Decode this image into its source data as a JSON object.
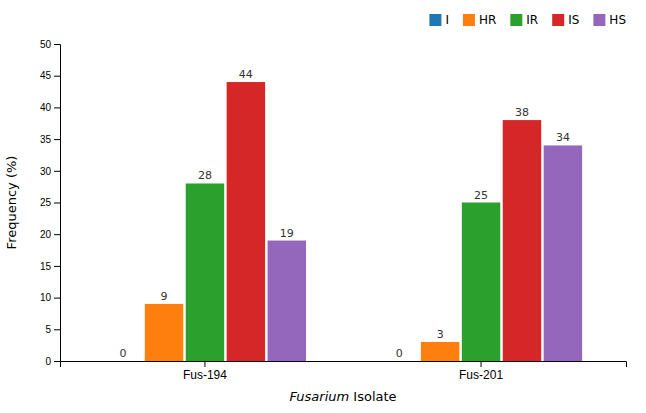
{
  "chart_data": {
    "type": "bar",
    "categories": [
      "Fus-194",
      "Fus-201"
    ],
    "series": [
      {
        "name": "I",
        "values": [
          0,
          0
        ]
      },
      {
        "name": "HR",
        "values": [
          9,
          3
        ]
      },
      {
        "name": "IR",
        "values": [
          28,
          25
        ]
      },
      {
        "name": "IS",
        "values": [
          44,
          38
        ]
      },
      {
        "name": "HS",
        "values": [
          19,
          34
        ]
      }
    ],
    "x_label": "Fusarium Isolate",
    "y_label": "Frequency (%)",
    "ylim": [
      0,
      50
    ],
    "yticks": [
      0,
      5,
      10,
      15,
      20,
      25,
      30,
      35,
      40,
      45,
      50
    ],
    "grid": false,
    "legend": "upper right",
    "data_labels": true
  }
}
